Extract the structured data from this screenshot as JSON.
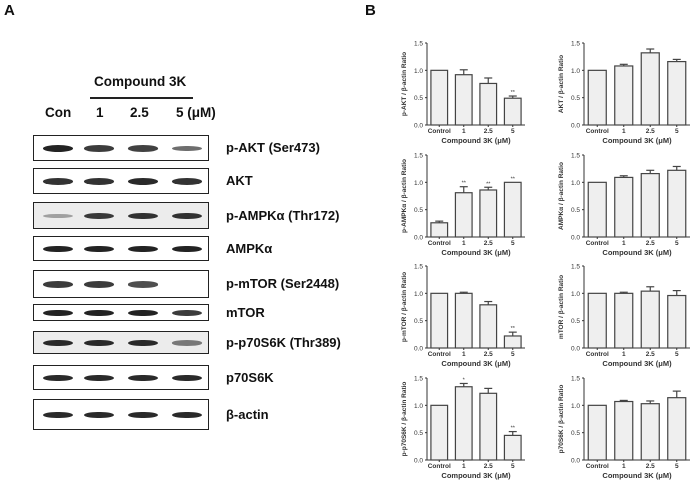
{
  "figure": {
    "panel_a_label": "A",
    "panel_b_label": "B"
  },
  "western_blot": {
    "treatment_header": "Compound 3K",
    "lanes": [
      "Con",
      "1",
      "2.5",
      "5 (μM)"
    ],
    "rows": [
      {
        "label": "p-AKT (Ser473)",
        "intensity": [
          0.95,
          0.8,
          0.78,
          0.5
        ],
        "background": "white"
      },
      {
        "label": "AKT",
        "intensity": [
          0.85,
          0.85,
          0.9,
          0.85
        ],
        "background": "white"
      },
      {
        "label": "p-AMPKα (Thr172)",
        "intensity": [
          0.15,
          0.8,
          0.85,
          0.85
        ],
        "background": "grey"
      },
      {
        "label": "AMPKα",
        "intensity": [
          0.95,
          0.95,
          0.95,
          0.95
        ],
        "background": "white"
      },
      {
        "label": "p-mTOR (Ser2448)",
        "intensity": [
          0.8,
          0.8,
          0.7,
          0.0
        ],
        "background": "white"
      },
      {
        "label": "mTOR",
        "intensity": [
          0.95,
          0.95,
          0.95,
          0.8
        ],
        "background": "white"
      },
      {
        "label": "p-p70S6K (Thr389)",
        "intensity": [
          0.9,
          0.9,
          0.9,
          0.4
        ],
        "background": "grey"
      },
      {
        "label": "p70S6K",
        "intensity": [
          0.9,
          0.9,
          0.9,
          0.9
        ],
        "background": "white"
      },
      {
        "label": "β-actin",
        "intensity": [
          0.9,
          0.9,
          0.9,
          0.9
        ],
        "background": "white"
      }
    ]
  },
  "chart_data": [
    {
      "type": "bar",
      "title": "",
      "ylabel": "p-AKT / β-actin Ratio",
      "xlabel": "Compound 3K (μM)",
      "categories": [
        "Control",
        "1",
        "2.5",
        "5"
      ],
      "values": [
        1.0,
        0.92,
        0.76,
        0.49
      ],
      "errors": [
        0,
        0.09,
        0.1,
        0.04
      ],
      "significance": [
        "",
        "",
        "",
        "**"
      ],
      "ylim": [
        0,
        1.5
      ],
      "yticks": [
        "0.0",
        "0.5",
        "1.0",
        "1.5"
      ]
    },
    {
      "type": "bar",
      "title": "",
      "ylabel": "AKT / β-actin Ratio",
      "xlabel": "Compound 3K (μM)",
      "categories": [
        "Control",
        "1",
        "2.5",
        "5"
      ],
      "values": [
        1.0,
        1.08,
        1.32,
        1.16
      ],
      "errors": [
        0,
        0.03,
        0.07,
        0.04
      ],
      "significance": [
        "",
        "",
        "",
        ""
      ],
      "ylim": [
        0,
        1.5
      ],
      "yticks": [
        "0.0",
        "0.5",
        "1.0",
        "1.5"
      ]
    },
    {
      "type": "bar",
      "title": "",
      "ylabel": "p-AMPKα / β-actin Ratio",
      "xlabel": "Compound 3K (μM)",
      "categories": [
        "Control",
        "1",
        "2.5",
        "5"
      ],
      "values": [
        0.26,
        0.81,
        0.86,
        1.0
      ],
      "errors": [
        0.03,
        0.11,
        0.05,
        0
      ],
      "significance": [
        "",
        "**",
        "**",
        "**"
      ],
      "ylim": [
        0,
        1.5
      ],
      "yticks": [
        "0.0",
        "0.5",
        "1.0",
        "1.5"
      ]
    },
    {
      "type": "bar",
      "title": "",
      "ylabel": "AMPKα / β-actin Ratio",
      "xlabel": "Compound 3K (μM)",
      "categories": [
        "Control",
        "1",
        "2.5",
        "5"
      ],
      "values": [
        1.0,
        1.09,
        1.16,
        1.22
      ],
      "errors": [
        0,
        0.03,
        0.06,
        0.07
      ],
      "significance": [
        "",
        "",
        "",
        ""
      ],
      "ylim": [
        0,
        1.5
      ],
      "yticks": [
        "0.0",
        "0.5",
        "1.0",
        "1.5"
      ]
    },
    {
      "type": "bar",
      "title": "",
      "ylabel": "p-mTOR / β-actin Ratio",
      "xlabel": "Compound 3K (μM)",
      "categories": [
        "Control",
        "1",
        "2.5",
        "5"
      ],
      "values": [
        1.0,
        1.0,
        0.79,
        0.22
      ],
      "errors": [
        0,
        0.02,
        0.06,
        0.07
      ],
      "significance": [
        "",
        "",
        "",
        "**"
      ],
      "ylim": [
        0,
        1.5
      ],
      "yticks": [
        "0.0",
        "0.5",
        "1.0",
        "1.5"
      ]
    },
    {
      "type": "bar",
      "title": "",
      "ylabel": "mTOR / β-actin Ratio",
      "xlabel": "Compound 3K (μM)",
      "categories": [
        "Control",
        "1",
        "2.5",
        "5"
      ],
      "values": [
        1.0,
        1.0,
        1.04,
        0.96
      ],
      "errors": [
        0,
        0.02,
        0.08,
        0.09
      ],
      "significance": [
        "",
        "",
        "",
        ""
      ],
      "ylim": [
        0,
        1.5
      ],
      "yticks": [
        "0.0",
        "0.5",
        "1.0",
        "1.5"
      ]
    },
    {
      "type": "bar",
      "title": "",
      "ylabel": "p-p70S6K / β-actin Ratio",
      "xlabel": "Compound 3K (μM)",
      "categories": [
        "Control",
        "1",
        "2.5",
        "5"
      ],
      "values": [
        1.0,
        1.34,
        1.22,
        0.45
      ],
      "errors": [
        0,
        0.06,
        0.09,
        0.07
      ],
      "significance": [
        "",
        "*",
        "",
        "**"
      ],
      "ylim": [
        0,
        1.5
      ],
      "yticks": [
        "0.0",
        "0.5",
        "1.0",
        "1.5"
      ]
    },
    {
      "type": "bar",
      "title": "",
      "ylabel": "p70S6K / β-actin Ratio",
      "xlabel": "Compound 3K (μM)",
      "categories": [
        "Control",
        "1",
        "2.5",
        "5"
      ],
      "values": [
        1.0,
        1.07,
        1.03,
        1.14
      ],
      "errors": [
        0,
        0.02,
        0.05,
        0.12
      ],
      "significance": [
        "",
        "",
        "",
        ""
      ],
      "ylim": [
        0,
        1.5
      ],
      "yticks": [
        "0.0",
        "0.5",
        "1.0",
        "1.5"
      ]
    }
  ]
}
